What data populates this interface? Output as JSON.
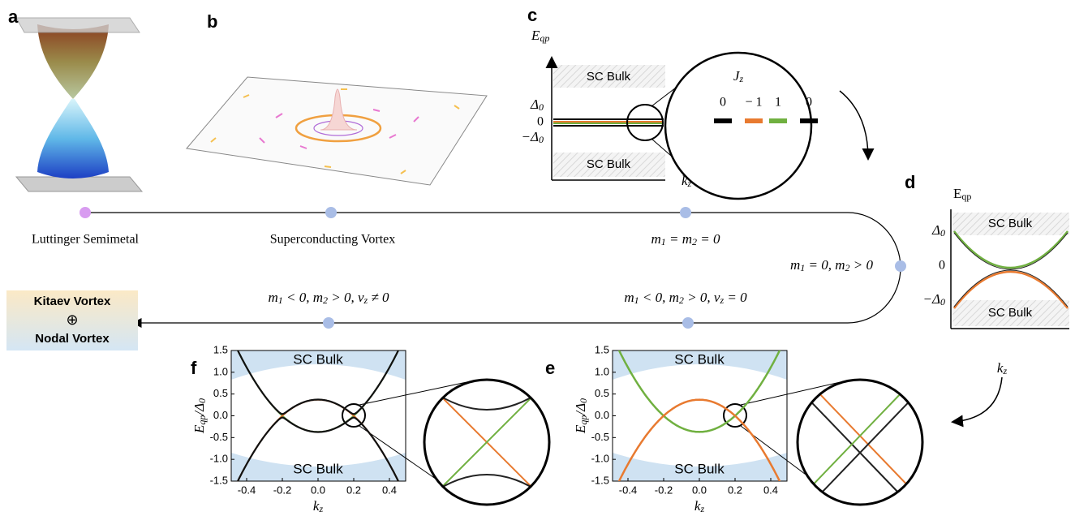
{
  "panel_labels": [
    "a",
    "b",
    "c",
    "d",
    "e",
    "f"
  ],
  "panel_c": {
    "y_axis": [
      {
        "t": "E"
      },
      {
        "s": "qp"
      }
    ],
    "delta": [
      {
        "t": "Δ"
      },
      {
        "s": "0"
      }
    ],
    "zero": "0",
    "neg_delta": [
      {
        "t": "−Δ"
      },
      {
        "s": "0"
      }
    ],
    "bulk_top": "SC Bulk",
    "bulk_bottom": "SC Bulk",
    "x_axis": [
      {
        "t": "k"
      },
      {
        "s": "z"
      }
    ],
    "inset": {
      "title": [
        {
          "t": "J"
        },
        {
          "s": "z"
        }
      ],
      "levels": [
        "0",
        "− 1",
        "1",
        "0"
      ]
    }
  },
  "panel_d": {
    "y_axis": [
      {
        "t": "E"
      },
      {
        "s": "qp"
      }
    ],
    "delta": [
      {
        "t": "Δ"
      },
      {
        "s": "0"
      }
    ],
    "zero": "0",
    "neg_delta": [
      {
        "t": "−Δ"
      },
      {
        "s": "0"
      }
    ],
    "bulk_top": "SC Bulk",
    "bulk_bottom": "SC Bulk",
    "x_axis": [
      {
        "t": "k"
      },
      {
        "s": "z"
      }
    ]
  },
  "timeline": {
    "start": "Luttinger Semimetal",
    "vortex": "Superconducting Vortex",
    "cond1": [
      {
        "t": "m"
      },
      {
        "s": "1"
      },
      {
        "t": " = m"
      },
      {
        "s": "2"
      },
      {
        "t": " = 0"
      }
    ],
    "cond2": [
      {
        "t": "m"
      },
      {
        "s": "1"
      },
      {
        "t": " = 0, m"
      },
      {
        "s": "2"
      },
      {
        "t": " > 0"
      }
    ],
    "cond3": [
      {
        "t": "m"
      },
      {
        "s": "1"
      },
      {
        "t": " < 0, m"
      },
      {
        "s": "2"
      },
      {
        "t": " > 0, v"
      },
      {
        "s": "z"
      },
      {
        "t": " = 0"
      }
    ],
    "cond4": [
      {
        "t": "m"
      },
      {
        "s": "1"
      },
      {
        "t": " < 0, m"
      },
      {
        "s": "2"
      },
      {
        "t": " > 0, v"
      },
      {
        "s": "z"
      },
      {
        "t": " ≠ 0"
      }
    ]
  },
  "result": [
    "Kitaev Vortex",
    "⊕",
    "Nodal Vortex"
  ],
  "panel_f": {
    "yticks": [
      "1.5",
      "1.0",
      "0.5",
      "0.0",
      "-0.5",
      "-1.0",
      "-1.5"
    ],
    "xticks": [
      "-0.4",
      "-0.2",
      "0.0",
      "0.2",
      "0.4"
    ],
    "y_axis": [
      {
        "t": "E"
      },
      {
        "s": "qp"
      },
      {
        "t": "/Δ"
      },
      {
        "s": "0"
      }
    ],
    "x_axis": [
      {
        "t": "k"
      },
      {
        "s": "z"
      }
    ],
    "bulk": [
      "SC Bulk",
      "SC Bulk"
    ]
  },
  "panel_e": {
    "yticks": [
      "1.5",
      "1.0",
      "0.5",
      "0.0",
      "-0.5",
      "-1.0",
      "-1.5"
    ],
    "xticks": [
      "-0.4",
      "-0.2",
      "0.0",
      "0.2",
      "0.4"
    ],
    "y_axis": [
      {
        "t": "E"
      },
      {
        "s": "qp"
      },
      {
        "t": "/Δ"
      },
      {
        "s": "0"
      }
    ],
    "x_axis": [
      {
        "t": "k"
      },
      {
        "s": "z"
      }
    ],
    "bulk": [
      "SC Bulk",
      "SC Bulk"
    ]
  }
}
